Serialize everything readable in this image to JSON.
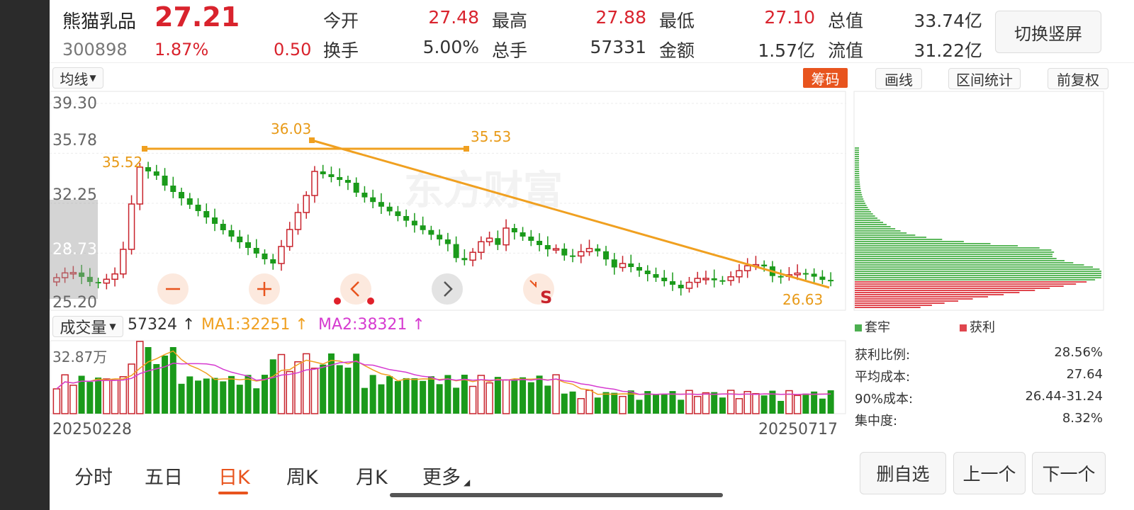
{
  "header": {
    "name": "熊猫乳品",
    "price": "27.21",
    "code": "300898",
    "change_pct": "1.87%",
    "change_amt": "0.50",
    "stats": [
      {
        "label": "今开",
        "value": "27.48",
        "color": "#d9232d"
      },
      {
        "label": "最高",
        "value": "27.88",
        "color": "#d9232d"
      },
      {
        "label": "最低",
        "value": "27.10",
        "color": "#d9232d"
      },
      {
        "label": "总值",
        "value": "33.74亿",
        "color": "#333333"
      },
      {
        "label": "换手",
        "value": "5.00%",
        "color": "#333333"
      },
      {
        "label": "总手",
        "value": "57331",
        "color": "#333333"
      },
      {
        "label": "金额",
        "value": "1.57亿",
        "color": "#333333"
      },
      {
        "label": "流值",
        "value": "31.22亿",
        "color": "#333333"
      }
    ],
    "switch_label": "切换竖屏"
  },
  "toolbar": {
    "ma_select": "均线",
    "chouma": "筹码",
    "draw_line": "画线",
    "interval_stats": "区间统计",
    "adjust": "前复权"
  },
  "kline": {
    "y_ticks": [
      "39.30",
      "35.78",
      "32.25",
      "28.73",
      "25.20"
    ],
    "annotations": {
      "high_label": "36.03",
      "left_label": "35.52",
      "line_end_label": "35.53",
      "low_label": "26.63"
    },
    "watermark": "东方财富",
    "controls": [
      "minus-icon",
      "plus-icon",
      "chevron-left-icon",
      "chevron-right-icon",
      "collapse-icon"
    ],
    "s_marker": "S"
  },
  "volume": {
    "selector": "成交量",
    "current": "57324 ↑",
    "ma1": "MA1:32251 ↑",
    "ma2": "MA2:38321 ↑",
    "max_label": "32.87万",
    "date_start": "20250228",
    "date_end": "20250717"
  },
  "chip_panel": {
    "legend_trapped": "套牢",
    "legend_profit": "获利",
    "stats": [
      {
        "label": "获利比例:",
        "value": "28.56%"
      },
      {
        "label": "平均成本:",
        "value": "27.64"
      },
      {
        "label": "90%成本:",
        "value": "26.44-31.24"
      },
      {
        "label": "集中度:",
        "value": "8.32%"
      }
    ]
  },
  "tabs": [
    "分时",
    "五日",
    "日K",
    "周K",
    "月K",
    "更多"
  ],
  "active_tab": "日K",
  "buttons": {
    "remove_watch": "删自选",
    "prev": "上一个",
    "next": "下一个"
  },
  "colors": {
    "up": "#c8232c",
    "down": "#1a9a1a",
    "orange": "#f0a020",
    "ma2": "#d63bd0",
    "accent": "#e8541e"
  }
}
